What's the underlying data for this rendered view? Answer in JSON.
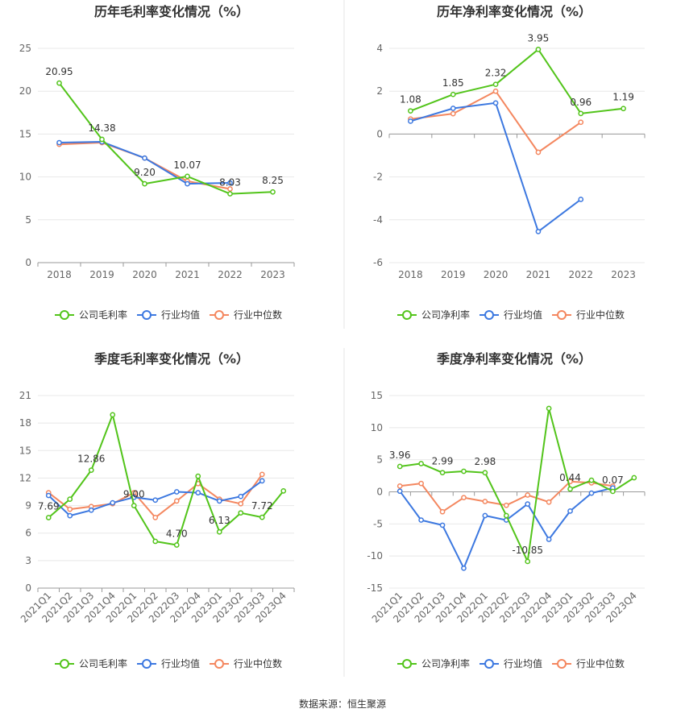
{
  "colors": {
    "company": "#52c41a",
    "avg": "#3c78e0",
    "median": "#f4875f",
    "grid": "#e8e8e8",
    "axis": "#999999",
    "divider": "#e6e6e6"
  },
  "source": "数据来源：恒生聚源",
  "chart_data": [
    {
      "type": "line",
      "title": "历年毛利率变化情况（%）",
      "categories": [
        "2018",
        "2019",
        "2020",
        "2021",
        "2022",
        "2023"
      ],
      "ylim": [
        0,
        25
      ],
      "yticks": [
        0,
        5,
        10,
        15,
        20,
        25
      ],
      "legend_position": "bottom",
      "grid": true,
      "series": [
        {
          "name": "公司毛利率",
          "values": [
            20.95,
            14.38,
            9.2,
            10.07,
            8.03,
            8.25
          ]
        },
        {
          "name": "行业均值",
          "values": [
            14.0,
            14.1,
            12.2,
            9.2,
            9.3,
            null
          ]
        },
        {
          "name": "行业中位数",
          "values": [
            13.8,
            14.0,
            12.2,
            9.5,
            8.6,
            null
          ]
        }
      ],
      "labels": [
        "20.95",
        "14.38",
        "9.20",
        "10.07",
        "8.03",
        "8.25"
      ]
    },
    {
      "type": "line",
      "title": "历年净利率变化情况（%）",
      "categories": [
        "2018",
        "2019",
        "2020",
        "2021",
        "2022",
        "2023"
      ],
      "ylim": [
        -6,
        4
      ],
      "yticks": [
        -6,
        -4,
        -2,
        0,
        2,
        4
      ],
      "legend_position": "bottom",
      "grid": true,
      "series": [
        {
          "name": "公司净利率",
          "values": [
            1.08,
            1.85,
            2.32,
            3.95,
            0.96,
            1.19
          ]
        },
        {
          "name": "行业均值",
          "values": [
            0.6,
            1.2,
            1.45,
            -4.55,
            -3.05,
            null
          ]
        },
        {
          "name": "行业中位数",
          "values": [
            0.7,
            0.95,
            2.0,
            -0.85,
            0.55,
            null
          ]
        }
      ],
      "labels": [
        "1.08",
        "1.85",
        "2.32",
        "3.95",
        "0.96",
        "1.19"
      ]
    },
    {
      "type": "line",
      "title": "季度毛利率变化情况（%）",
      "categories": [
        "2021Q1",
        "2021Q2",
        "2021Q3",
        "2021Q4",
        "2022Q1",
        "2022Q2",
        "2022Q3",
        "2022Q4",
        "2023Q1",
        "2023Q2",
        "2023Q3",
        "2023Q4"
      ],
      "ylim": [
        0,
        21
      ],
      "yticks": [
        0,
        3,
        6,
        9,
        12,
        15,
        18,
        21
      ],
      "legend_position": "bottom",
      "grid": true,
      "series": [
        {
          "name": "公司毛利率",
          "values": [
            7.69,
            9.7,
            12.86,
            18.9,
            9.0,
            5.1,
            4.7,
            12.2,
            6.13,
            8.2,
            7.72,
            10.6
          ]
        },
        {
          "name": "行业均值",
          "values": [
            10.1,
            7.9,
            8.5,
            9.3,
            9.9,
            9.6,
            10.5,
            10.4,
            9.5,
            10.0,
            11.7,
            null
          ]
        },
        {
          "name": "行业中位数",
          "values": [
            10.4,
            8.6,
            8.9,
            9.2,
            10.4,
            7.7,
            9.5,
            11.4,
            9.7,
            9.2,
            12.4,
            null
          ]
        }
      ],
      "labels": [
        "7.69",
        "",
        "12.86",
        "",
        "9.00",
        "",
        "4.70",
        "",
        "6.13",
        "",
        "7.72",
        ""
      ]
    },
    {
      "type": "line",
      "title": "季度净利率变化情况（%）",
      "categories": [
        "2021Q1",
        "2021Q2",
        "2021Q3",
        "2021Q4",
        "2022Q1",
        "2022Q2",
        "2022Q3",
        "2022Q4",
        "2023Q1",
        "2023Q2",
        "2023Q3",
        "2023Q4"
      ],
      "ylim": [
        -15,
        15
      ],
      "yticks": [
        -15,
        -10,
        -5,
        0,
        5,
        10,
        15
      ],
      "legend_position": "bottom",
      "grid": true,
      "series": [
        {
          "name": "公司净利率",
          "values": [
            3.96,
            4.4,
            2.99,
            3.2,
            2.98,
            -3.7,
            -10.85,
            13.0,
            0.44,
            1.8,
            0.07,
            2.2
          ]
        },
        {
          "name": "行业均值",
          "values": [
            0.1,
            -4.4,
            -5.2,
            -11.9,
            -3.7,
            -4.4,
            -1.9,
            -7.4,
            -3.0,
            -0.2,
            0.6,
            null
          ]
        },
        {
          "name": "行业中位数",
          "values": [
            0.9,
            1.3,
            -3.1,
            -0.9,
            -1.5,
            -2.1,
            -0.5,
            -1.6,
            1.6,
            1.4,
            0.9,
            null
          ]
        }
      ],
      "labels": [
        "3.96",
        "",
        "2.99",
        "",
        "2.98",
        "",
        "-10.85",
        "",
        "0.44",
        "",
        "0.07",
        ""
      ]
    }
  ]
}
